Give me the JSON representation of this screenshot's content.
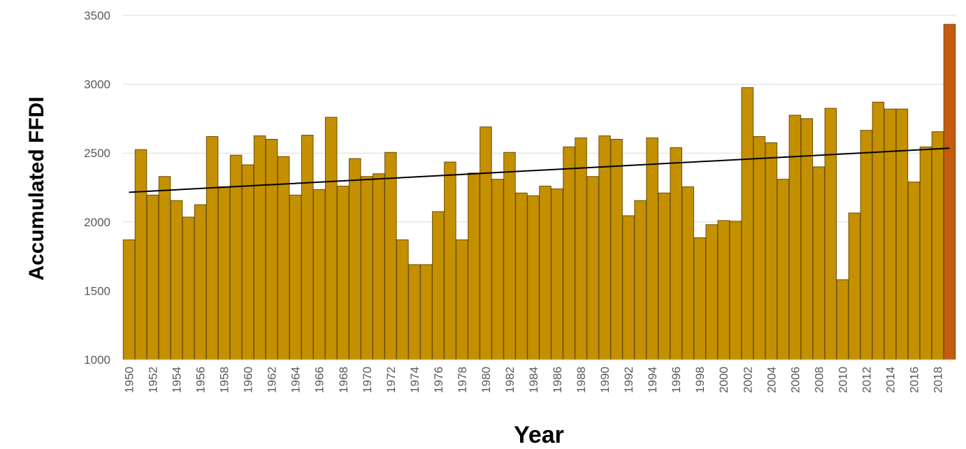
{
  "chart_data": {
    "type": "bar",
    "xlabel": "Year",
    "ylabel": "Accumulated FFDI",
    "ylim": [
      1000,
      3500
    ],
    "yticks": [
      1000,
      1500,
      2000,
      2500,
      3000,
      3500
    ],
    "grid": true,
    "legend": "none",
    "bar_color": "#C49000",
    "highlight_color": "#C55A11",
    "trend_color": "#000000",
    "trendline": {
      "start": 2215,
      "end": 2535
    },
    "categories": [
      "1950",
      "1951",
      "1952",
      "1953",
      "1954",
      "1955",
      "1956",
      "1957",
      "1958",
      "1959",
      "1960",
      "1961",
      "1962",
      "1963",
      "1964",
      "1965",
      "1966",
      "1967",
      "1968",
      "1969",
      "1970",
      "1971",
      "1972",
      "1973",
      "1974",
      "1975",
      "1976",
      "1977",
      "1978",
      "1979",
      "1980",
      "1981",
      "1982",
      "1983",
      "1984",
      "1985",
      "1986",
      "1987",
      "1988",
      "1989",
      "1990",
      "1991",
      "1992",
      "1993",
      "1994",
      "1995",
      "1996",
      "1997",
      "1998",
      "1999",
      "2000",
      "2001",
      "2002",
      "2003",
      "2004",
      "2005",
      "2006",
      "2007",
      "2008",
      "2009",
      "2010",
      "2011",
      "2012",
      "2013",
      "2014",
      "2015",
      "2016",
      "2017",
      "2018",
      "2019"
    ],
    "tick_labels": [
      "1950",
      "1952",
      "1954",
      "1956",
      "1958",
      "1960",
      "1962",
      "1964",
      "1966",
      "1968",
      "1970",
      "1972",
      "1974",
      "1976",
      "1978",
      "1980",
      "1982",
      "1984",
      "1986",
      "1988",
      "1990",
      "1992",
      "1994",
      "1996",
      "1998",
      "2000",
      "2002",
      "2004",
      "2006",
      "2008",
      "2010",
      "2012",
      "2014",
      "2016",
      "2018"
    ],
    "values": [
      1870,
      2525,
      2195,
      2330,
      2155,
      2035,
      2125,
      2620,
      2255,
      2485,
      2415,
      2625,
      2600,
      2475,
      2195,
      2630,
      2235,
      2760,
      2260,
      2460,
      2330,
      2350,
      2505,
      1870,
      1690,
      1690,
      2075,
      2435,
      1870,
      2355,
      2690,
      2310,
      2505,
      2210,
      2190,
      2260,
      2240,
      2545,
      2610,
      2330,
      2625,
      2600,
      2045,
      2155,
      2610,
      2210,
      2540,
      2255,
      1885,
      1980,
      2010,
      2005,
      2975,
      2620,
      2575,
      2310,
      2775,
      2750,
      2400,
      2825,
      1580,
      2065,
      2665,
      2870,
      2820,
      2820,
      2290,
      2545,
      2655,
      3435
    ],
    "highlight_index": 69
  }
}
